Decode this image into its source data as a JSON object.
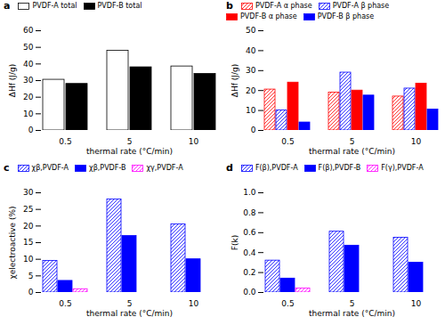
{
  "chart_data": [
    {
      "type": "bar",
      "title": "a",
      "categories": [
        "0.5",
        "5",
        "10"
      ],
      "xlabel": "thermal rate (°C/min)",
      "ylabel": "ΔHf (J/g)",
      "ylim": [
        0,
        60
      ],
      "yticks": [
        0,
        10,
        20,
        30,
        40,
        50,
        60
      ],
      "series": [
        {
          "name": "PVDF-A total",
          "color": "#FFFFFF",
          "values": [
            30.5,
            48.0,
            38.5
          ]
        },
        {
          "name": "PVDF-B total",
          "color": "#000000",
          "values": [
            28.0,
            38.0,
            34.0
          ]
        }
      ]
    },
    {
      "type": "bar",
      "title": "b",
      "categories": [
        "0.5",
        "5",
        "10"
      ],
      "xlabel": "thermal rate (°C/min)",
      "ylabel": "ΔHf (J/g)",
      "ylim": [
        0,
        50
      ],
      "yticks": [
        0,
        10,
        20,
        30,
        40,
        50
      ],
      "series": [
        {
          "name": "PVDF-A α phase",
          "color": "#FF0000",
          "values": [
            20.5,
            19.0,
            17.0
          ]
        },
        {
          "name": "PVDF-A β phase",
          "color": "#0000FF",
          "values": [
            10.0,
            29.0,
            21.0
          ]
        },
        {
          "name": "PVDF-B α phase",
          "color": "#FF0000",
          "values": [
            24.0,
            20.0,
            23.5
          ]
        },
        {
          "name": "PVDF-B β phase",
          "color": "#0000FF",
          "values": [
            4.0,
            17.5,
            10.5
          ]
        }
      ]
    },
    {
      "type": "bar",
      "title": "c",
      "categories": [
        "0.5",
        "5",
        "10"
      ],
      "xlabel": "thermal rate (°C/min)",
      "ylabel": "χelectroactive (%)",
      "ylim": [
        0,
        30
      ],
      "yticks": [
        0,
        5,
        10,
        15,
        20,
        25,
        30
      ],
      "series": [
        {
          "name": "χβ,PVDF-A",
          "color": "#0000FF",
          "values": [
            9.5,
            28.0,
            20.5
          ]
        },
        {
          "name": "χβ,PVDF-B",
          "color": "#0000FF",
          "values": [
            3.5,
            17.0,
            10.0
          ]
        },
        {
          "name": "χγ,PVDF-A",
          "color": "#FF00FF",
          "values": [
            1.0,
            0.0,
            0.0
          ]
        }
      ]
    },
    {
      "type": "bar",
      "title": "d",
      "categories": [
        "0.5",
        "5",
        "10"
      ],
      "xlabel": "thermal rate (°C/min)",
      "ylabel": "F(k)",
      "ylim": [
        0,
        1.0
      ],
      "yticks": [
        {
          "value": 0.0,
          "label": "0.0"
        },
        0.2,
        0.4,
        0.6,
        0.8,
        {
          "value": 1.0,
          "label": "1.0"
        }
      ],
      "series": [
        {
          "name": "F(β),PVDF-A",
          "color": "#0000FF",
          "values": [
            0.32,
            0.61,
            0.55
          ]
        },
        {
          "name": "F(β),PVDF-B",
          "color": "#0000FF",
          "values": [
            0.14,
            0.47,
            0.3
          ]
        },
        {
          "name": "F(γ),PVDF-A",
          "color": "#FF00FF",
          "values": [
            0.04,
            0.0,
            0.0
          ]
        }
      ]
    }
  ]
}
